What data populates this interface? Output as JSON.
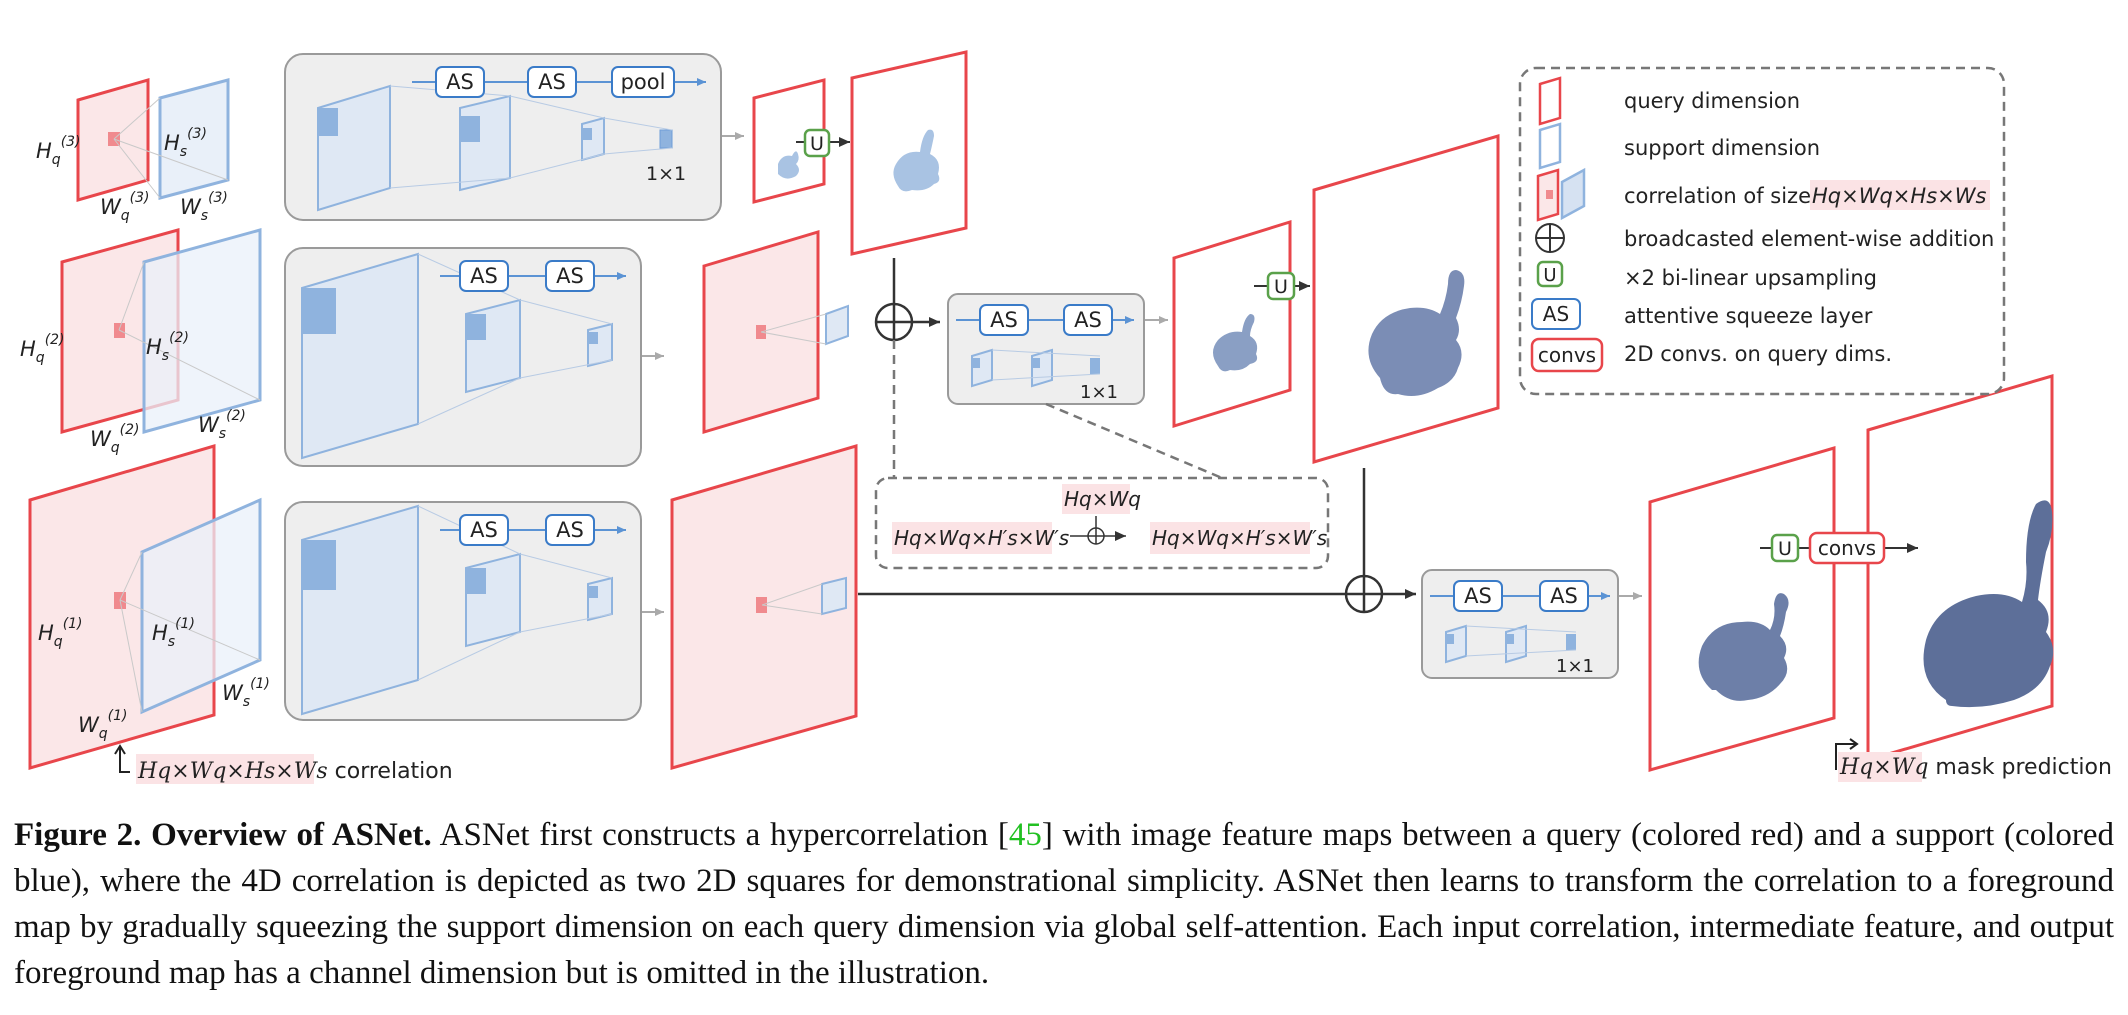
{
  "labels": {
    "as": "AS",
    "pool": "pool",
    "upsample": "U",
    "convs": "convs",
    "one_by_one": "1×1",
    "hq3": "H",
    "hq3_sub": "q",
    "hq3_sup": "(3)",
    "hs3": "H",
    "hs3_sub": "s",
    "hs3_sup": "(3)",
    "wq3": "W",
    "wq3_sub": "q",
    "wq3_sup": "(3)",
    "ws3": "W",
    "ws3_sub": "s",
    "ws3_sup": "(3)",
    "hq2": "H",
    "hq2_sub": "q",
    "hq2_sup": "(2)",
    "hs2": "H",
    "hs2_sub": "s",
    "hs2_sup": "(2)",
    "wq2": "W",
    "wq2_sub": "q",
    "wq2_sup": "(2)",
    "ws2": "W",
    "ws2_sub": "s",
    "ws2_sup": "(2)",
    "hq1": "H",
    "hq1_sub": "q",
    "hq1_sup": "(1)",
    "hs1": "H",
    "hs1_sub": "s",
    "hs1_sup": "(1)",
    "wq1": "W",
    "wq1_sub": "q",
    "wq1_sup": "(1)",
    "ws1": "W",
    "ws1_sub": "s",
    "ws1_sup": "(1)",
    "corr_formula": "Hq×Wq×Hs×Ws",
    "corr_suffix": "correlation",
    "mask_formula": "Hq×Wq",
    "mask_suffix": "mask prediction",
    "inset_top": "Hq×Wq",
    "inset_left": "Hq×Wq×H′s×W′s",
    "inset_right": "Hq×Wq×H′s×W′s"
  },
  "legend": {
    "query": "query dimension",
    "support": "support dimension",
    "correlation_prefix": "correlation of size",
    "correlation_formula": "Hq×Wq×Hs×Ws",
    "addition": "broadcasted element-wise addition",
    "upsampling": "×2 bi-linear upsampling",
    "as": "attentive squeeze layer",
    "convs": "2D convs. on query dims."
  },
  "caption": {
    "lead": "Figure 2.  Overview of ASNet.",
    "text1": " ASNet first constructs a hypercorrelation [",
    "cite": "45",
    "text2": "] with image feature maps between a query (colored red) and a support (colored blue), where the 4D correlation is depicted as two 2D squares for demonstrational simplicity. ASNet then learns to transform the correlation to a foreground map by gradually squeezing the support dimension on each query dimension via global self-attention. Each input correlation, intermediate feature, and output foreground map has a channel dimension but is omitted in the illustration."
  },
  "colors": {
    "query": "#e8464b",
    "query_fill": "#fbe7e8",
    "support": "#8fb3de",
    "support_fill": "#e9f0f9",
    "as_box": "#3a7bc8",
    "upsample": "#5aa14a",
    "mask_light": "#a9c3e3",
    "mask_mid": "#8a9fc4",
    "mask_dark": "#5d6f99",
    "panel_fill": "#eeeeee",
    "panel_stroke": "#9a9a9a"
  }
}
